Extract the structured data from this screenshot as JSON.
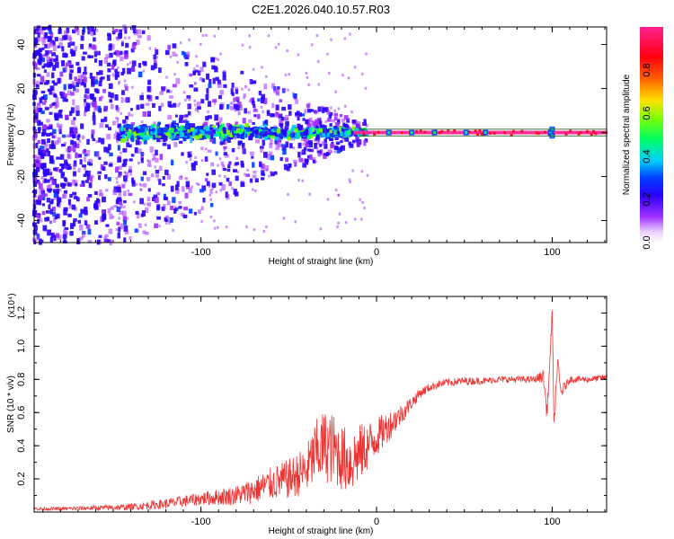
{
  "title": "C2E1.2026.040.10.57.R03",
  "chart_data": [
    {
      "type": "heatmap",
      "title": "C2E1.2026.040.10.57.R03",
      "xlabel": "Height of straight line (km)",
      "ylabel": "Frequency (Hz)",
      "xlim": [
        -195,
        131
      ],
      "ylim": [
        -50,
        48
      ],
      "xticks": [
        "-100",
        "0",
        "100"
      ],
      "yticks": [
        "-40",
        "-20",
        "0",
        "20",
        "40"
      ],
      "colorbar": {
        "label": "Normalized spectral amplitude",
        "range": [
          0,
          1
        ],
        "ticks": [
          "0.0",
          "0.2",
          "0.4",
          "0.6",
          "0.8"
        ]
      },
      "features": [
        {
          "region": "x < -140",
          "description": "broadband purple noise across all frequencies"
        },
        {
          "region": "-140 < x < -10",
          "description": "noise band narrowing toward 0 Hz with cyan/green cores"
        },
        {
          "region": "x > -10",
          "description": "narrow high-amplitude red line at 0 Hz"
        }
      ]
    },
    {
      "type": "line",
      "xlabel": "Height of straight line (km)",
      "ylabel": "SNR (10 * v/v)",
      "y_multiplier": "(x10⁴)",
      "xlim": [
        -195,
        131
      ],
      "ylim": [
        0,
        1.3
      ],
      "xticks": [
        "-100",
        "0",
        "100"
      ],
      "yticks": [
        "0.2",
        "0.4",
        "0.6",
        "0.8",
        "1.0",
        "1.2"
      ],
      "series": [
        {
          "name": "SNR",
          "color": "#ee3333",
          "x": [
            -195,
            -180,
            -160,
            -140,
            -120,
            -100,
            -80,
            -70,
            -60,
            -50,
            -40,
            -35,
            -30,
            -25,
            -20,
            -15,
            -10,
            -5,
            0,
            5,
            10,
            15,
            20,
            25,
            30,
            35,
            40,
            50,
            60,
            70,
            80,
            90,
            95,
            97,
            99,
            100,
            101,
            103,
            105,
            110,
            120,
            131
          ],
          "values": [
            0.02,
            0.02,
            0.025,
            0.03,
            0.05,
            0.08,
            0.1,
            0.13,
            0.17,
            0.2,
            0.25,
            0.35,
            0.4,
            0.38,
            0.33,
            0.3,
            0.35,
            0.4,
            0.45,
            0.5,
            0.55,
            0.6,
            0.66,
            0.72,
            0.75,
            0.77,
            0.78,
            0.79,
            0.79,
            0.8,
            0.8,
            0.8,
            0.82,
            0.6,
            0.95,
            1.25,
            0.5,
            0.9,
            0.72,
            0.8,
            0.8,
            0.81
          ],
          "noise_amplitude": [
            0.01,
            0.01,
            0.015,
            0.02,
            0.03,
            0.04,
            0.06,
            0.08,
            0.1,
            0.12,
            0.15,
            0.2,
            0.22,
            0.22,
            0.2,
            0.2,
            0.18,
            0.15,
            0.12,
            0.1,
            0.08,
            0.06,
            0.04,
            0.03,
            0.025,
            0.025,
            0.025,
            0.025,
            0.02,
            0.02,
            0.02,
            0.02,
            0.04,
            0.05,
            0.05,
            0.05,
            0.05,
            0.05,
            0.04,
            0.02,
            0.02,
            0.02
          ]
        }
      ]
    }
  ],
  "colors": {
    "snr_line": "#ee3333",
    "frame": "#000000",
    "tick_color": "#000000"
  }
}
